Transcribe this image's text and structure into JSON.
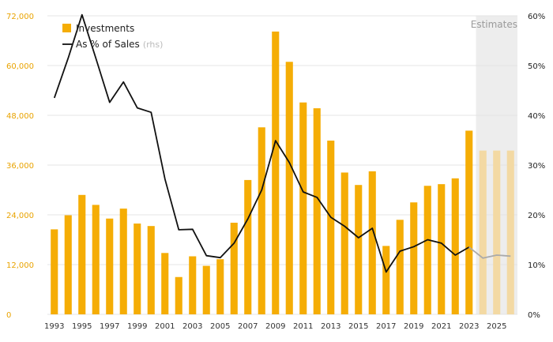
{
  "chart_data": {
    "type": "bar",
    "x": [
      1993,
      1994,
      1995,
      1996,
      1997,
      1998,
      1999,
      2000,
      2001,
      2002,
      2003,
      2004,
      2005,
      2006,
      2007,
      2008,
      2009,
      2010,
      2011,
      2012,
      2013,
      2014,
      2015,
      2016,
      2017,
      2018,
      2019,
      2020,
      2021,
      2022,
      2023,
      2024,
      2025,
      2026
    ],
    "x_tick_labels": [
      "1993",
      "1995",
      "1997",
      "1999",
      "2001",
      "2003",
      "2005",
      "2007",
      "2009",
      "2011",
      "2013",
      "2015",
      "2017",
      "2019",
      "2021",
      "2023",
      "2025"
    ],
    "series": [
      {
        "name": "Investments",
        "axis": "left",
        "kind": "bar",
        "values": [
          20500,
          23900,
          28800,
          26400,
          23100,
          25500,
          21900,
          21300,
          14800,
          9000,
          14000,
          11700,
          13300,
          22100,
          32400,
          45100,
          68200,
          60900,
          51100,
          49700,
          41900,
          34200,
          31200,
          34500,
          16500,
          22800,
          27000,
          31000,
          31400,
          32800,
          44300,
          39500,
          39500,
          39500
        ]
      },
      {
        "name": "As % of Sales",
        "name_suffix": "(rhs)",
        "axis": "right",
        "kind": "line",
        "values": [
          43.5,
          51.5,
          60.2,
          51.5,
          42.6,
          46.7,
          41.5,
          40.6,
          27.2,
          17.0,
          17.1,
          11.8,
          11.4,
          14.3,
          19.2,
          25.0,
          34.9,
          30.5,
          24.6,
          23.5,
          19.5,
          17.7,
          15.4,
          17.3,
          8.5,
          12.7,
          13.6,
          15.0,
          14.3,
          11.9,
          13.5,
          11.3,
          11.9,
          11.7
        ]
      }
    ],
    "estimates_from": 2024,
    "estimates_label": "Estimates",
    "y_left": {
      "ticks": [
        "0",
        "12,000",
        "24,000",
        "36,000",
        "48,000",
        "60,000",
        "72,000"
      ],
      "min": 0,
      "max": 72000
    },
    "y_right": {
      "ticks": [
        "0%",
        "10%",
        "20%",
        "30%",
        "40%",
        "50%",
        "60%"
      ],
      "min": 0,
      "max": 60
    },
    "grid": true,
    "legend_position": "top-left",
    "colors": {
      "bar": "#f5ad05",
      "bar_estimate": "#f3d9a3",
      "line": "#111111",
      "line_estimate": "#aaaaaa",
      "left_axis_text": "#e9a300",
      "right_axis_text": "#222222",
      "grid": "#e4e4e4",
      "estimate_shade": "#ededed"
    }
  }
}
